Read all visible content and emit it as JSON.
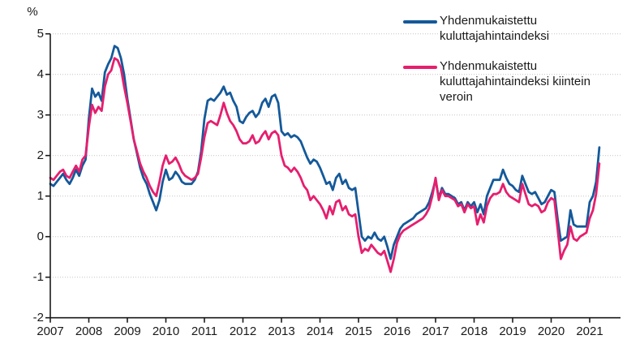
{
  "figure": {
    "unit_label": "%"
  },
  "legend": {
    "items": [
      {
        "label": "Yhdenmukaistettu kuluttajahintaindeksi"
      },
      {
        "label": "Yhdenmukaistettu kuluttajahintaindeksi kiintein veroin"
      }
    ]
  },
  "chart_data": {
    "type": "line",
    "title": "",
    "xlabel": "",
    "ylabel": "%",
    "x_unit": "month",
    "x_start": "2007-01",
    "x_end": "2021-04",
    "x_tick_labels": [
      "2007",
      "2008",
      "2009",
      "2010",
      "2011",
      "2012",
      "2013",
      "2014",
      "2015",
      "2016",
      "2017",
      "2018",
      "2019",
      "2020",
      "2021"
    ],
    "y_ticks": [
      5,
      4,
      3,
      2,
      1,
      0,
      -1,
      -2
    ],
    "ylim": [
      -2,
      5
    ],
    "grid": "horizontal-dotted",
    "legend_position": "top-right",
    "colors": {
      "axis": "#1a1a1a",
      "grid": "#c4c4c4",
      "background": "#ffffff"
    },
    "series": [
      {
        "name": "Yhdenmukaistettu kuluttajahintaindeksi",
        "color": "#14599a",
        "values": [
          1.3,
          1.25,
          1.35,
          1.45,
          1.55,
          1.4,
          1.3,
          1.45,
          1.65,
          1.5,
          1.75,
          1.9,
          2.9,
          3.65,
          3.45,
          3.55,
          3.35,
          4.05,
          4.25,
          4.4,
          4.7,
          4.65,
          4.4,
          4.0,
          3.4,
          2.9,
          2.4,
          2.05,
          1.7,
          1.45,
          1.3,
          1.05,
          0.85,
          0.65,
          0.9,
          1.35,
          1.65,
          1.4,
          1.45,
          1.6,
          1.5,
          1.35,
          1.3,
          1.3,
          1.3,
          1.4,
          1.6,
          2.1,
          2.9,
          3.35,
          3.4,
          3.35,
          3.45,
          3.55,
          3.7,
          3.5,
          3.55,
          3.35,
          3.2,
          2.85,
          2.8,
          2.95,
          3.05,
          3.1,
          2.95,
          3.05,
          3.3,
          3.4,
          3.2,
          3.45,
          3.5,
          3.3,
          2.6,
          2.5,
          2.55,
          2.45,
          2.5,
          2.45,
          2.35,
          2.15,
          1.95,
          1.8,
          1.9,
          1.85,
          1.7,
          1.5,
          1.3,
          1.35,
          1.15,
          1.45,
          1.55,
          1.3,
          1.4,
          1.2,
          1.15,
          1.2,
          0.6,
          0.0,
          -0.1,
          0.0,
          -0.05,
          0.1,
          -0.05,
          -0.1,
          0.0,
          -0.25,
          -0.55,
          -0.2,
          0.0,
          0.2,
          0.3,
          0.35,
          0.4,
          0.45,
          0.55,
          0.6,
          0.65,
          0.7,
          0.85,
          1.1,
          1.4,
          0.95,
          1.2,
          1.05,
          1.05,
          1.0,
          0.95,
          0.8,
          0.85,
          0.65,
          0.85,
          0.75,
          0.85,
          0.6,
          0.8,
          0.55,
          1.0,
          1.2,
          1.4,
          1.4,
          1.4,
          1.65,
          1.45,
          1.3,
          1.25,
          1.15,
          1.1,
          1.5,
          1.3,
          1.1,
          1.05,
          1.1,
          0.95,
          0.8,
          0.85,
          1.0,
          1.15,
          1.1,
          0.45,
          -0.1,
          -0.05,
          0.0,
          0.65,
          0.3,
          0.25,
          0.25,
          0.25,
          0.25,
          0.85,
          1.0,
          1.35,
          2.2
        ]
      },
      {
        "name": "Yhdenmukaistettu kuluttajahintaindeksi kiintein veroin",
        "color": "#e61e6e",
        "values": [
          1.45,
          1.4,
          1.5,
          1.6,
          1.65,
          1.5,
          1.45,
          1.6,
          1.75,
          1.6,
          1.9,
          2.0,
          2.7,
          3.25,
          3.05,
          3.2,
          3.1,
          3.7,
          4.0,
          4.1,
          4.4,
          4.35,
          4.15,
          3.7,
          3.3,
          2.85,
          2.4,
          2.1,
          1.8,
          1.6,
          1.45,
          1.25,
          1.1,
          1.0,
          1.35,
          1.75,
          2.0,
          1.8,
          1.85,
          1.95,
          1.8,
          1.6,
          1.5,
          1.45,
          1.4,
          1.45,
          1.55,
          1.95,
          2.45,
          2.8,
          2.85,
          2.8,
          2.75,
          3.0,
          3.3,
          3.05,
          2.85,
          2.75,
          2.6,
          2.4,
          2.3,
          2.3,
          2.35,
          2.5,
          2.3,
          2.35,
          2.5,
          2.6,
          2.4,
          2.55,
          2.6,
          2.5,
          2.0,
          1.75,
          1.7,
          1.6,
          1.7,
          1.6,
          1.45,
          1.25,
          1.15,
          0.9,
          1.0,
          0.9,
          0.8,
          0.65,
          0.45,
          0.75,
          0.55,
          0.85,
          0.9,
          0.65,
          0.75,
          0.55,
          0.5,
          0.55,
          0.0,
          -0.4,
          -0.3,
          -0.35,
          -0.2,
          -0.3,
          -0.4,
          -0.45,
          -0.35,
          -0.6,
          -0.87,
          -0.55,
          -0.15,
          0.05,
          0.15,
          0.2,
          0.25,
          0.3,
          0.35,
          0.4,
          0.45,
          0.55,
          0.7,
          1.0,
          1.45,
          0.9,
          1.15,
          1.0,
          1.0,
          0.95,
          0.9,
          0.75,
          0.8,
          0.6,
          0.8,
          0.7,
          0.75,
          0.3,
          0.55,
          0.35,
          0.75,
          0.95,
          1.05,
          1.05,
          1.1,
          1.3,
          1.1,
          1.0,
          0.95,
          0.9,
          0.85,
          1.3,
          1.05,
          0.8,
          0.75,
          0.8,
          0.75,
          0.6,
          0.65,
          0.85,
          0.95,
          0.9,
          0.2,
          -0.55,
          -0.35,
          -0.2,
          0.25,
          -0.05,
          -0.1,
          0.0,
          0.05,
          0.1,
          0.45,
          0.65,
          1.05,
          1.8
        ]
      }
    ]
  }
}
